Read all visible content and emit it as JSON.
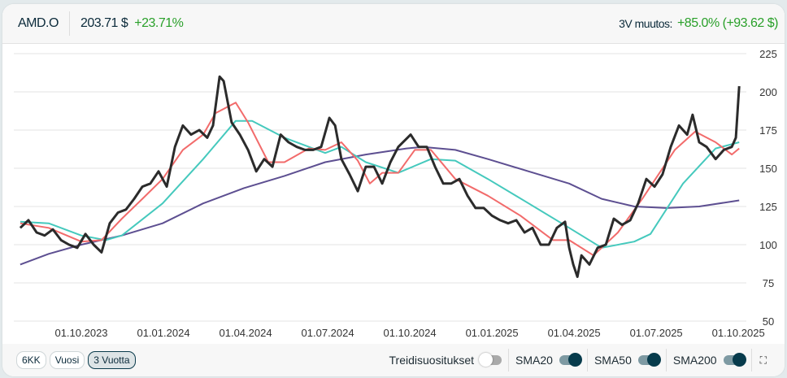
{
  "header": {
    "ticker": "AMD.O",
    "price": "203.71 $",
    "change": "+23.71%",
    "period_label": "3V muutos:",
    "period_change": "+85.0% (+93.62 $)"
  },
  "footer": {
    "ranges": [
      "6KK",
      "Vuosi",
      "3 Vuotta"
    ],
    "active_range": "3 Vuotta",
    "toggles": [
      {
        "label": "Treidisuositukset",
        "on": false
      },
      {
        "label": "SMA20",
        "on": true
      },
      {
        "label": "SMA50",
        "on": true
      },
      {
        "label": "SMA200",
        "on": true
      }
    ]
  },
  "colors": {
    "price": "#2b2b2b",
    "sma20": "#f26b6b",
    "sma50": "#45c9bd",
    "sma200": "#5d4f91",
    "up": "#2aa02a",
    "accent": "#073b4c"
  },
  "chart_data": {
    "type": "line",
    "title": "AMD.O",
    "xlabel": "",
    "ylabel": "",
    "x_unit": "months since 01.07.2023",
    "xlim": [
      0,
      27.5
    ],
    "ylim": [
      50,
      225
    ],
    "yticks": [
      50,
      75,
      100,
      125,
      150,
      175,
      200,
      225
    ],
    "xticks": [
      {
        "x": 3,
        "label": "01.10.2023"
      },
      {
        "x": 6,
        "label": "01.01.2024"
      },
      {
        "x": 9,
        "label": "01.04.2024"
      },
      {
        "x": 12,
        "label": "01.07.2024"
      },
      {
        "x": 15,
        "label": "01.10.2024"
      },
      {
        "x": 18,
        "label": "01.01.2025"
      },
      {
        "x": 21,
        "label": "01.04.2025"
      },
      {
        "x": 24,
        "label": "01.07.2025"
      },
      {
        "x": 27,
        "label": "01.10.2025"
      }
    ],
    "grid": true,
    "legend": "none",
    "series": [
      {
        "name": "Price",
        "x": [
          0.77,
          1.07,
          1.37,
          1.66,
          1.96,
          2.26,
          2.55,
          2.85,
          3.15,
          3.45,
          3.74,
          4.04,
          4.34,
          4.63,
          4.93,
          5.23,
          5.52,
          5.82,
          6.12,
          6.42,
          6.71,
          7.01,
          7.31,
          7.6,
          7.81,
          8.05,
          8.2,
          8.49,
          8.79,
          9.09,
          9.39,
          9.68,
          9.98,
          10.28,
          10.57,
          10.87,
          11.17,
          11.47,
          11.76,
          12.06,
          12.27,
          12.5,
          12.8,
          13.1,
          13.39,
          13.69,
          13.99,
          14.29,
          14.58,
          15.03,
          15.32,
          15.62,
          15.92,
          16.22,
          16.51,
          16.81,
          17.11,
          17.4,
          17.7,
          18.0,
          18.3,
          18.59,
          18.89,
          19.19,
          19.48,
          19.78,
          20.08,
          20.37,
          20.67,
          20.82,
          20.97,
          21.12,
          21.27,
          21.56,
          21.86,
          22.16,
          22.45,
          22.75,
          23.05,
          23.34,
          23.64,
          23.94,
          24.23,
          24.53,
          24.83,
          25.13,
          25.33,
          25.57,
          25.84,
          26.17,
          26.47,
          26.76,
          26.91,
          27.03
        ],
        "values": [
          111,
          116,
          108,
          106,
          110,
          103,
          100,
          98,
          107,
          100,
          95,
          114,
          121,
          123,
          130,
          138,
          140,
          148,
          138,
          164,
          178,
          172,
          175,
          170,
          178,
          210,
          207,
          180,
          172,
          162,
          148,
          156,
          151,
          172,
          167,
          164,
          162,
          162,
          164,
          183,
          178,
          156,
          146,
          135,
          151,
          151,
          140,
          154,
          164,
          172,
          164,
          164,
          151,
          140,
          140,
          143,
          132,
          124,
          124,
          119,
          116,
          114,
          116,
          108,
          111,
          100,
          100,
          111,
          115,
          98,
          87,
          79,
          93,
          87,
          98,
          100,
          117,
          113,
          116,
          127,
          143,
          138,
          146,
          164,
          178,
          172,
          185,
          167,
          164,
          156,
          162,
          164,
          170,
          203.71
        ]
      },
      {
        "name": "SMA20",
        "x": [
          0.77,
          1.81,
          3,
          3.74,
          4.48,
          5.23,
          5.97,
          6.71,
          7.45,
          7.9,
          8.64,
          9.09,
          9.83,
          10.42,
          11.31,
          11.91,
          12.5,
          13.1,
          13.54,
          13.99,
          14.58,
          15.18,
          15.77,
          16.66,
          17.85,
          19.04,
          20.23,
          20.82,
          21.71,
          22.6,
          23.49,
          24.68,
          25.42,
          26.17,
          26.76,
          27.03
        ],
        "values": [
          114,
          111,
          102,
          103,
          117,
          130,
          143,
          162,
          172,
          186,
          193,
          180,
          154,
          154,
          163,
          162,
          167,
          155,
          140,
          147,
          147,
          162,
          162,
          143,
          132,
          119,
          103,
          103,
          93,
          108,
          130,
          162,
          174,
          167,
          159,
          163
        ]
      },
      {
        "name": "SMA50",
        "x": [
          0.77,
          1.81,
          3,
          3.89,
          4.48,
          5.97,
          7.45,
          8.64,
          9.24,
          10.42,
          11.91,
          12.5,
          13.39,
          14.58,
          15.77,
          16.66,
          17.85,
          19.34,
          20.82,
          22.01,
          23.2,
          23.79,
          24.98,
          26.17,
          27.03
        ],
        "values": [
          115,
          114,
          106,
          103,
          106,
          127,
          156,
          181,
          181,
          170,
          160,
          164,
          154,
          147,
          156,
          155,
          143,
          127,
          111,
          98,
          102,
          107,
          140,
          163,
          167
        ]
      },
      {
        "name": "SMA200",
        "x": [
          0.77,
          1.81,
          3,
          4.48,
          5.97,
          7.45,
          8.94,
          10.42,
          11.91,
          13.39,
          14.88,
          15.47,
          16.66,
          17.85,
          19.34,
          20.82,
          22.01,
          23.2,
          24.38,
          25.57,
          27.03
        ],
        "values": [
          87,
          94,
          100,
          106,
          114,
          127,
          137,
          145,
          154,
          159,
          163,
          164,
          162,
          156,
          148,
          140,
          130,
          125,
          124,
          125,
          129
        ]
      }
    ]
  }
}
